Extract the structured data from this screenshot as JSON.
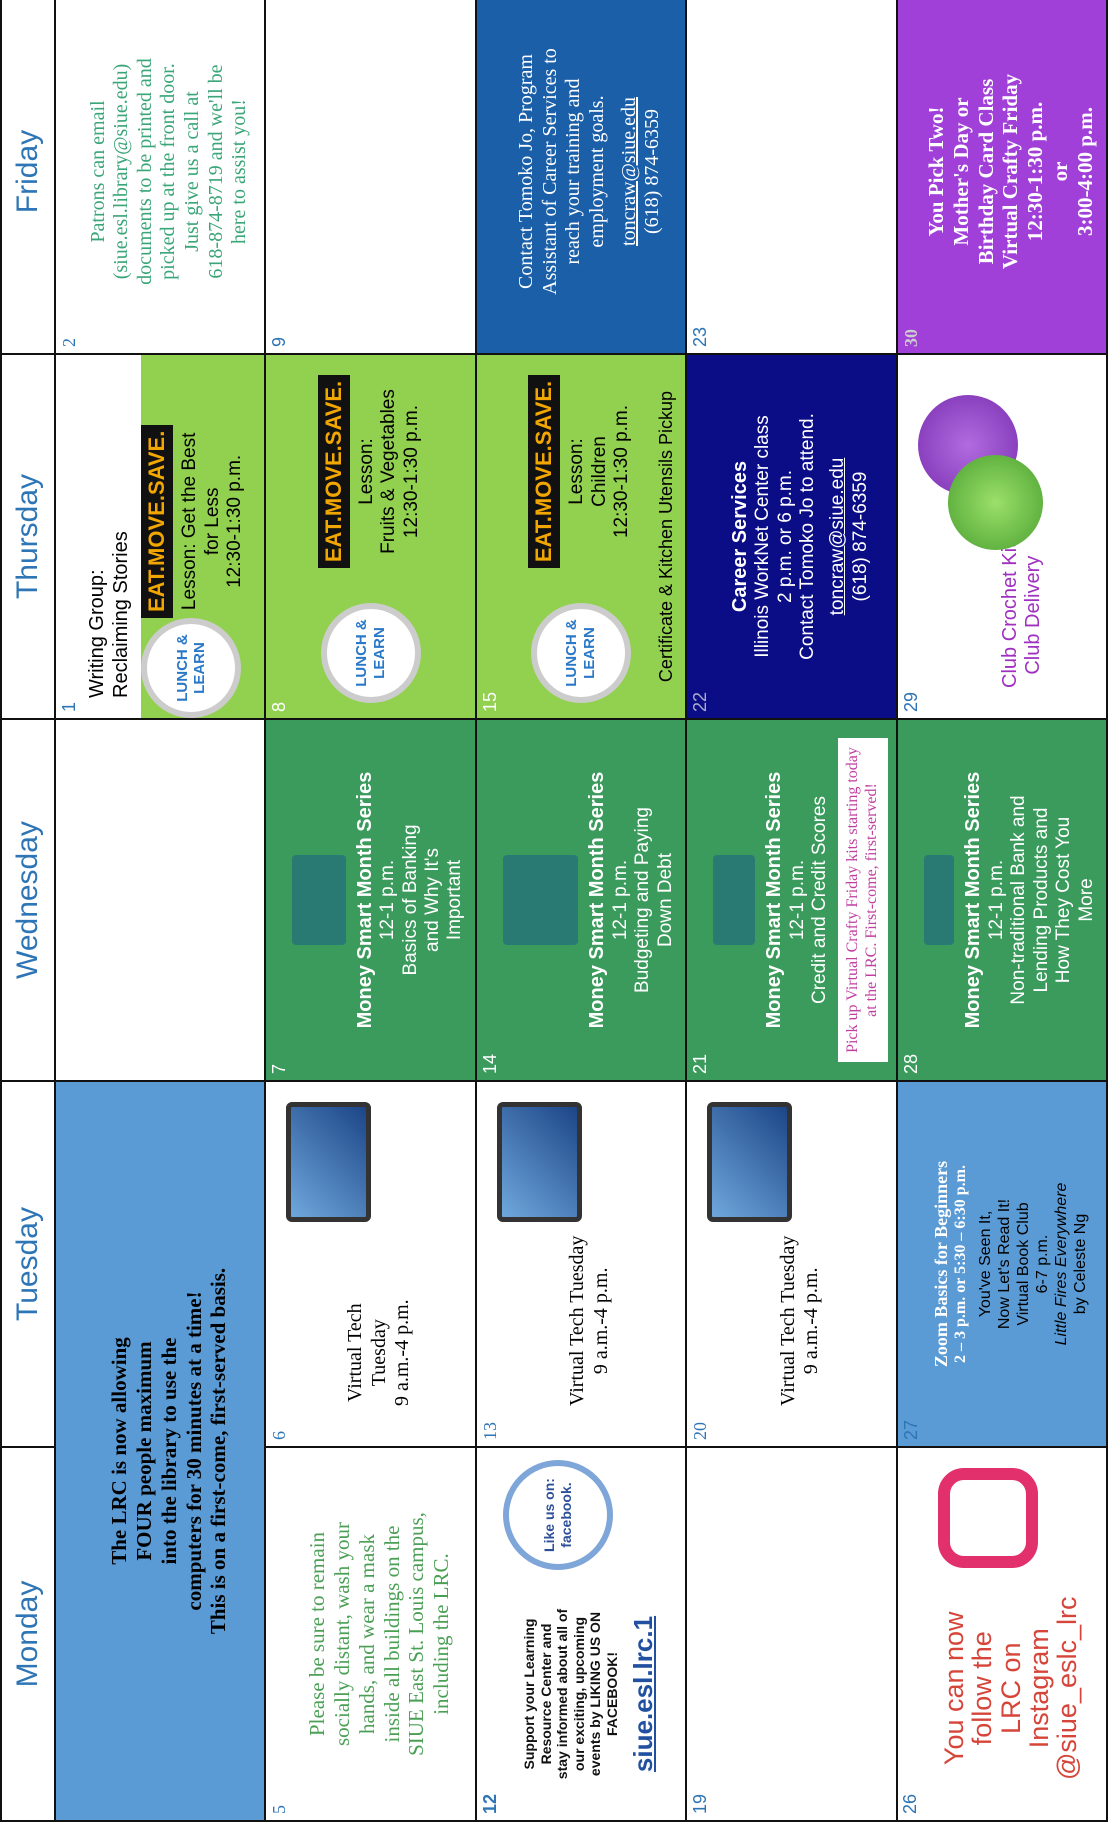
{
  "days": [
    "Monday",
    "Tuesday",
    "Wednesday",
    "Thursday",
    "Friday"
  ],
  "weeks": [
    {
      "cells": [
        {
          "lines": [
            "The LRC is now allowing",
            "FOUR people maximum",
            "into the library to use the",
            "computers for 30 minutes at a time!",
            "This is on a first-come, first-served basis."
          ]
        },
        {},
        {
          "date": 1,
          "top": [
            "Writing Group:",
            "Reclaiming Stories"
          ],
          "badge": "LUNCH & LEARN",
          "logo": "EAT.MOVE.SAVE.",
          "lines": [
            "Lesson: Get the Best",
            "for Less",
            "12:30-1:30 p.m."
          ]
        },
        {
          "date": 2,
          "lines": [
            "Patrons can email",
            "(siue.esl.library@siue.edu)",
            "documents to be printed and",
            "picked up at the front door.",
            "Just give us a call at",
            "618-874-8719 and we'll be",
            "here to assist you!"
          ]
        }
      ]
    },
    {
      "cells": [
        {
          "date": 5,
          "lines": [
            "Please be sure to remain",
            "socially distant, wash your",
            "hands, and wear a mask",
            "inside all buildings on the",
            "SIUE East St. Louis campus,",
            "including the LRC."
          ]
        },
        {
          "date": 6,
          "lines": [
            "Virtual Tech",
            "Tuesday",
            "9 a.m.-4 p.m."
          ]
        },
        {
          "date": 7,
          "heading": "Money Smart Month Series",
          "lines": [
            "12-1 p.m.",
            "Basics of Banking",
            "and Why It's",
            "Important"
          ]
        },
        {
          "date": 8,
          "badge": "LUNCH & LEARN",
          "logo": "EAT.MOVE.SAVE.",
          "lines": [
            "Lesson:",
            "Fruits & Vegetables",
            "12:30-1:30 p.m."
          ]
        },
        {
          "date": 9
        }
      ]
    },
    {
      "cells": [
        {
          "date": 12,
          "lines": [
            "Support your Learning",
            "Resource Center and",
            "stay informed about all of",
            "our exciting, upcoming",
            "events by LIKING US ON",
            "FACEBOOK!"
          ],
          "badge": "Like us on: facebook.",
          "link": "siue.esl.lrc.1"
        },
        {
          "date": 13,
          "lines": [
            "Virtual Tech Tuesday",
            "9 a.m.-4 p.m."
          ]
        },
        {
          "date": 14,
          "heading": "Money Smart Month Series",
          "lines": [
            "12-1 p.m.",
            "Budgeting and Paying",
            "Down Debt"
          ]
        },
        {
          "date": 15,
          "badge": "LUNCH & LEARN",
          "logo": "EAT.MOVE.SAVE.",
          "lines": [
            "Lesson:",
            "Children",
            "12:30-1:30 p.m."
          ],
          "note": "Certificate & Kitchen Utensils Pickup"
        },
        {
          "lines": [
            "Contact Tomoko Jo, Program",
            "Assistant of Career Services to",
            "reach your training and",
            "employment goals."
          ],
          "email": "toncraw@siue.edu",
          "phone": "(618) 874-6359"
        }
      ]
    },
    {
      "cells": [
        {
          "date": 19
        },
        {
          "date": 20,
          "lines": [
            "Virtual Tech Tuesday",
            "9 a.m.-4 p.m."
          ]
        },
        {
          "date": 21,
          "heading": "Money Smart Month Series",
          "lines": [
            "12-1 p.m.",
            "Credit and Credit Scores"
          ],
          "note": "Pick up Virtual Crafty Friday kits starting today at the LRC. First-come, first-served!"
        },
        {
          "date": 22,
          "heading": "Career Services",
          "lines": [
            "Illinois WorkNet Center class",
            "2 p.m. or 6 p.m.",
            "Contact Tomoko Jo to attend."
          ],
          "email": "toncraw@siue.edu",
          "phone": "(618) 874-6359"
        },
        {
          "date": 23
        }
      ]
    },
    {
      "cells": [
        {
          "date": 26,
          "lines": [
            "You can now",
            "follow the",
            "LRC on",
            "Instagram",
            "@siue_eslc_lrc"
          ]
        },
        {
          "date": 27,
          "heading": "Zoom Basics for Beginners",
          "sub": "2 – 3 p.m. or 5:30 – 6:30 p.m.",
          "lines": [
            "You've Seen It,",
            "Now Let's Read It!",
            "Virtual Book Club",
            "6-7 p.m."
          ],
          "book": "Little Fires Everywhere",
          "author": "by Celeste Ng"
        },
        {
          "date": 28,
          "heading": "Money Smart Month Series",
          "lines": [
            "12-1 p.m.",
            "Non-traditional Bank and",
            "Lending Products and",
            "How They Cost You",
            "More"
          ]
        },
        {
          "date": 29,
          "lines": [
            "Club Crochet Kit",
            "Club Delivery"
          ]
        },
        {
          "date": 30,
          "lines": [
            "You Pick Two!",
            "Mother's Day or",
            "Birthday Card Class",
            "Virtual Crafty Friday",
            "12:30-1:30 p.m.",
            "or",
            "3:00-4:00 p.m."
          ]
        }
      ]
    }
  ]
}
